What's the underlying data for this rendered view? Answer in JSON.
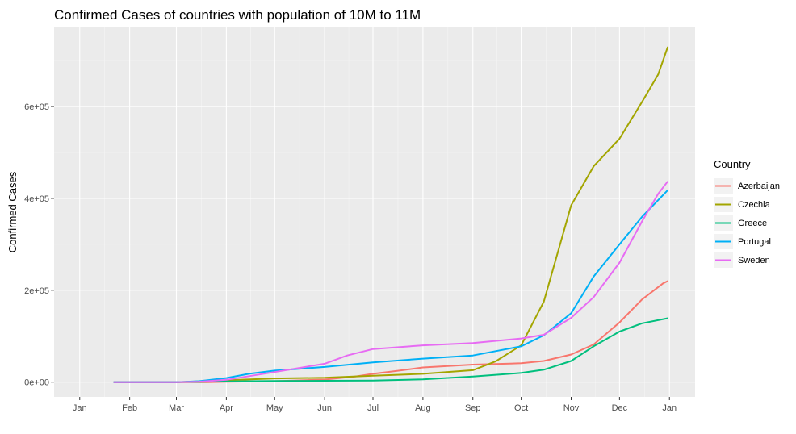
{
  "chart_data": {
    "type": "line",
    "title": "Confirmed Cases of countries with population of 10M to 11M",
    "xlabel": "",
    "ylabel": "Confirmed Cases",
    "xlim": [
      "2020-01-01",
      "2021-01-01"
    ],
    "ylim": [
      0,
      740000
    ],
    "x_ticks": [
      {
        "label": "Jan",
        "date": "2020-01-01"
      },
      {
        "label": "Feb",
        "date": "2020-02-01"
      },
      {
        "label": "Mar",
        "date": "2020-03-01"
      },
      {
        "label": "Apr",
        "date": "2020-04-01"
      },
      {
        "label": "May",
        "date": "2020-05-01"
      },
      {
        "label": "Jun",
        "date": "2020-06-01"
      },
      {
        "label": "Jul",
        "date": "2020-07-01"
      },
      {
        "label": "Aug",
        "date": "2020-08-01"
      },
      {
        "label": "Sep",
        "date": "2020-09-01"
      },
      {
        "label": "Oct",
        "date": "2020-10-01"
      },
      {
        "label": "Nov",
        "date": "2020-11-01"
      },
      {
        "label": "Dec",
        "date": "2020-12-01"
      },
      {
        "label": "Jan",
        "date": "2021-01-01"
      }
    ],
    "y_ticks": [
      {
        "label": "0e+00",
        "value": 0
      },
      {
        "label": "2e+05",
        "value": 200000
      },
      {
        "label": "4e+05",
        "value": 400000
      },
      {
        "label": "6e+05",
        "value": 600000
      }
    ],
    "grid": true,
    "legend": {
      "title": "Country",
      "position": "right"
    },
    "series": [
      {
        "name": "Azerbaijan",
        "color": "#F8766D",
        "points": [
          [
            "2020-01-22",
            0
          ],
          [
            "2020-03-01",
            0
          ],
          [
            "2020-03-20",
            0
          ],
          [
            "2020-04-01",
            600
          ],
          [
            "2020-05-01",
            2000
          ],
          [
            "2020-06-01",
            5500
          ],
          [
            "2020-06-20",
            12000
          ],
          [
            "2020-07-01",
            18000
          ],
          [
            "2020-07-15",
            24000
          ],
          [
            "2020-08-01",
            32000
          ],
          [
            "2020-09-01",
            38000
          ],
          [
            "2020-10-01",
            41000
          ],
          [
            "2020-10-15",
            46000
          ],
          [
            "2020-11-01",
            60000
          ],
          [
            "2020-11-15",
            82000
          ],
          [
            "2020-12-01",
            130000
          ],
          [
            "2020-12-15",
            180000
          ],
          [
            "2020-12-28",
            215000
          ],
          [
            "2020-12-31",
            220000
          ]
        ]
      },
      {
        "name": "Czechia",
        "color": "#A3A500",
        "points": [
          [
            "2020-01-22",
            0
          ],
          [
            "2020-03-01",
            0
          ],
          [
            "2020-04-01",
            4000
          ],
          [
            "2020-05-01",
            8000
          ],
          [
            "2020-06-01",
            9500
          ],
          [
            "2020-07-01",
            14000
          ],
          [
            "2020-08-01",
            18000
          ],
          [
            "2020-09-01",
            26000
          ],
          [
            "2020-09-15",
            45000
          ],
          [
            "2020-10-01",
            80000
          ],
          [
            "2020-10-15",
            175000
          ],
          [
            "2020-11-01",
            385000
          ],
          [
            "2020-11-15",
            470000
          ],
          [
            "2020-12-01",
            530000
          ],
          [
            "2020-12-15",
            610000
          ],
          [
            "2020-12-25",
            670000
          ],
          [
            "2020-12-31",
            730000
          ]
        ]
      },
      {
        "name": "Greece",
        "color": "#00BF7D",
        "points": [
          [
            "2020-01-22",
            0
          ],
          [
            "2020-03-01",
            0
          ],
          [
            "2020-04-01",
            1500
          ],
          [
            "2020-05-01",
            2600
          ],
          [
            "2020-06-01",
            3000
          ],
          [
            "2020-07-01",
            3500
          ],
          [
            "2020-08-01",
            6000
          ],
          [
            "2020-09-01",
            12000
          ],
          [
            "2020-10-01",
            20000
          ],
          [
            "2020-10-15",
            27000
          ],
          [
            "2020-11-01",
            46000
          ],
          [
            "2020-11-15",
            78000
          ],
          [
            "2020-12-01",
            110000
          ],
          [
            "2020-12-15",
            128000
          ],
          [
            "2020-12-31",
            139000
          ]
        ]
      },
      {
        "name": "Portugal",
        "color": "#00B0F6",
        "points": [
          [
            "2020-01-22",
            0
          ],
          [
            "2020-03-01",
            0
          ],
          [
            "2020-03-15",
            2000
          ],
          [
            "2020-04-01",
            9000
          ],
          [
            "2020-04-15",
            18000
          ],
          [
            "2020-05-01",
            25000
          ],
          [
            "2020-06-01",
            33000
          ],
          [
            "2020-07-01",
            43000
          ],
          [
            "2020-08-01",
            51000
          ],
          [
            "2020-09-01",
            58000
          ],
          [
            "2020-10-01",
            78000
          ],
          [
            "2020-10-15",
            102000
          ],
          [
            "2020-11-01",
            150000
          ],
          [
            "2020-11-15",
            230000
          ],
          [
            "2020-12-01",
            300000
          ],
          [
            "2020-12-15",
            360000
          ],
          [
            "2020-12-31",
            418000
          ]
        ]
      },
      {
        "name": "Sweden",
        "color": "#E76BF3",
        "points": [
          [
            "2020-01-22",
            0
          ],
          [
            "2020-03-01",
            0
          ],
          [
            "2020-03-15",
            1000
          ],
          [
            "2020-04-01",
            5000
          ],
          [
            "2020-05-01",
            22000
          ],
          [
            "2020-06-01",
            40000
          ],
          [
            "2020-06-15",
            58000
          ],
          [
            "2020-07-01",
            72000
          ],
          [
            "2020-08-01",
            80000
          ],
          [
            "2020-09-01",
            85000
          ],
          [
            "2020-10-01",
            95000
          ],
          [
            "2020-10-15",
            103000
          ],
          [
            "2020-11-01",
            140000
          ],
          [
            "2020-11-15",
            185000
          ],
          [
            "2020-12-01",
            260000
          ],
          [
            "2020-12-15",
            350000
          ],
          [
            "2020-12-25",
            410000
          ],
          [
            "2020-12-31",
            437000
          ]
        ]
      }
    ]
  }
}
